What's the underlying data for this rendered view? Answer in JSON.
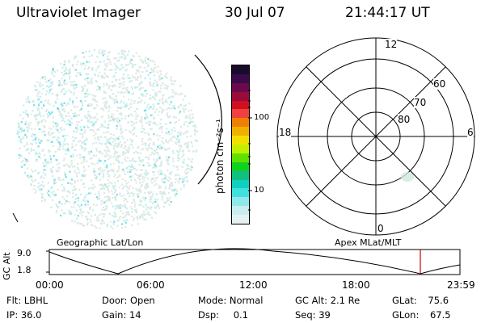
{
  "header": {
    "title": "Ultraviolet Imager",
    "date": "30 Jul 07",
    "time": "21:44:17 UT"
  },
  "colorbar": {
    "unit_label": "photon cm⁻²s⁻¹",
    "ticks": [
      "100",
      "10"
    ],
    "colors": [
      "#1a0a2e",
      "#3a0a4a",
      "#6a0a4a",
      "#9a0a3a",
      "#d01020",
      "#f04040",
      "#f08000",
      "#f0b000",
      "#f0e000",
      "#c0f000",
      "#60e000",
      "#10d020",
      "#10c080",
      "#10d0c0",
      "#40e0e0",
      "#90e8e8",
      "#c8eeee",
      "#e6f2f2"
    ]
  },
  "polar_plot": {
    "mlt_labels": {
      "top": "12",
      "left": "18",
      "right": "6",
      "bottom": "0"
    },
    "lat_labels": [
      "60",
      "70",
      "80"
    ]
  },
  "timeline": {
    "left_label": "Geographic Lat/Lon",
    "right_label": "Apex MLat/MLT",
    "axis_title": "GC Alt",
    "y_max": "9.0",
    "y_min": "1.8",
    "time_ticks": [
      "00:00",
      "06:00",
      "12:00",
      "18:00",
      "23:59"
    ]
  },
  "status": {
    "flt_label": "Flt:",
    "flt_value": "LBHL",
    "door_label": "Door:",
    "door_value": "Open",
    "mode_label": "Mode:",
    "mode_value": "Normal",
    "gcalt_label": "GC Alt:",
    "gcalt_value": "2.1 Re",
    "glat_label": "GLat:",
    "glat_value": "75.6",
    "ip_label": "IP:",
    "ip_value": "36.0",
    "gain_label": "Gain:",
    "gain_value": "14",
    "dsp_label": "Dsp:",
    "dsp_value": "0.1",
    "seq_label": "Seq:",
    "seq_value": "39",
    "glon_label": "GLon:",
    "glon_value": "67.5"
  }
}
